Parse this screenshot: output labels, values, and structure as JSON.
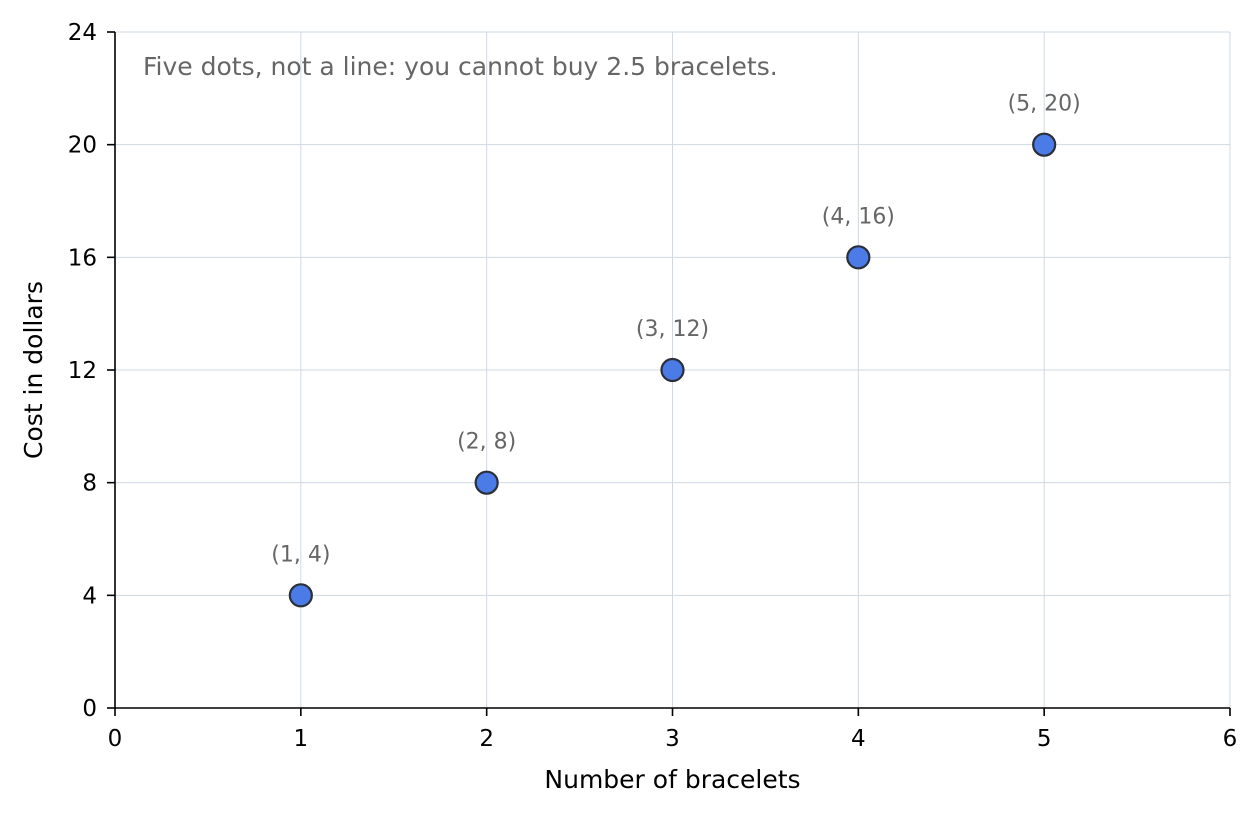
{
  "chart_data": {
    "type": "scatter",
    "xlabel": "Number of bracelets",
    "ylabel": "Cost in dollars",
    "xlim": [
      0,
      6
    ],
    "ylim": [
      0,
      24
    ],
    "x_ticks": [
      0,
      1,
      2,
      3,
      4,
      5,
      6
    ],
    "y_ticks": [
      0,
      4,
      8,
      12,
      16,
      20,
      24
    ],
    "grid": true,
    "annotation": "Five dots, not a line: you cannot buy 2.5 bracelets.",
    "marker_color": "#4a7be6",
    "series": [
      {
        "points": [
          {
            "x": 1,
            "y": 4,
            "label": "(1, 4)"
          },
          {
            "x": 2,
            "y": 8,
            "label": "(2, 8)"
          },
          {
            "x": 3,
            "y": 12,
            "label": "(3, 12)"
          },
          {
            "x": 4,
            "y": 16,
            "label": "(4, 16)"
          },
          {
            "x": 5,
            "y": 20,
            "label": "(5, 20)"
          }
        ]
      }
    ]
  }
}
